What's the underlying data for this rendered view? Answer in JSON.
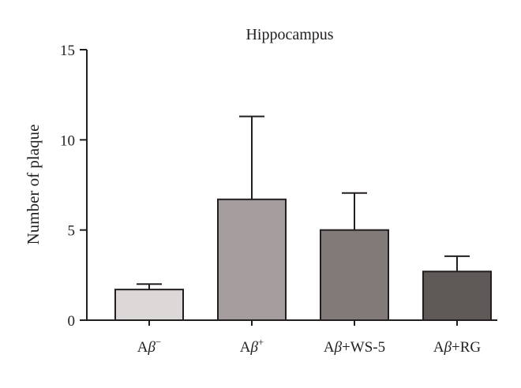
{
  "chart_data": {
    "type": "bar",
    "title": "Hippocampus",
    "xlabel": "",
    "ylabel": "Number of plaque",
    "ylim": [
      0,
      15
    ],
    "yticks": [
      0,
      5,
      10,
      15
    ],
    "grid": false,
    "categories": [
      {
        "base": "A",
        "greek": "β",
        "sup": "−",
        "suffix": ""
      },
      {
        "base": "A",
        "greek": "β",
        "sup": "+",
        "suffix": ""
      },
      {
        "base": "A",
        "greek": "β",
        "sup": "",
        "suffix": "+WS-5"
      },
      {
        "base": "A",
        "greek": "β",
        "sup": "",
        "suffix": "+RG"
      }
    ],
    "values": [
      1.7,
      6.7,
      5.0,
      2.7
    ],
    "errors": [
      0.3,
      4.6,
      2.05,
      0.85
    ],
    "colors": [
      "#dcd8d8",
      "#a59d9d",
      "#817a78",
      "#5f5957"
    ],
    "axis_color": "#231f20"
  }
}
